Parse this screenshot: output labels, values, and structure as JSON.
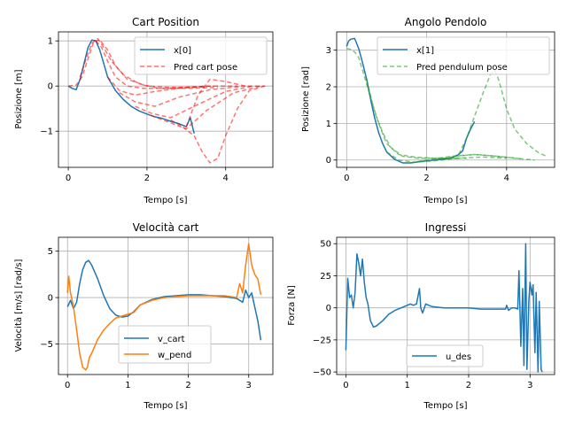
{
  "chart_data": [
    {
      "type": "line",
      "title": "Cart Position",
      "xlabel": "Tempo [s]",
      "ylabel": "Posizione [m]",
      "xlim": [
        -0.25,
        5.2
      ],
      "ylim": [
        -1.8,
        1.2
      ],
      "xticks": [
        0,
        2,
        4
      ],
      "yticks": [
        -1,
        0,
        1
      ],
      "grid": true,
      "legend_position": "top-right",
      "series": [
        {
          "name": "x[0]",
          "color": "#1f77b4",
          "style": "solid",
          "x": [
            0,
            0.1,
            0.2,
            0.3,
            0.4,
            0.5,
            0.6,
            0.7,
            0.8,
            0.9,
            1.0,
            1.2,
            1.4,
            1.6,
            1.8,
            2.0,
            2.2,
            2.4,
            2.6,
            2.8,
            3.0,
            3.1,
            3.2
          ],
          "y": [
            0.0,
            -0.05,
            -0.08,
            0.15,
            0.5,
            0.85,
            1.02,
            1.0,
            0.8,
            0.5,
            0.2,
            -0.1,
            -0.3,
            -0.45,
            -0.55,
            -0.62,
            -0.68,
            -0.72,
            -0.78,
            -0.83,
            -0.9,
            -0.7,
            -1.05
          ]
        },
        {
          "name": "Pred cart pose",
          "color": "#ff0000",
          "style": "dashed",
          "opacity": 0.55,
          "lines": [
            {
              "x": [
                0.0,
                0.2,
                0.35,
                0.5,
                0.65,
                0.8,
                1.0,
                1.2,
                1.5,
                2.0,
                2.6,
                3.5
              ],
              "y": [
                0.0,
                0.02,
                0.2,
                0.6,
                1.0,
                1.02,
                0.8,
                0.45,
                0.15,
                0.0,
                -0.03,
                -0.02
              ]
            },
            {
              "x": [
                0.3,
                0.45,
                0.6,
                0.75,
                0.9,
                1.1,
                1.4,
                1.8,
                2.3,
                3.0,
                3.8
              ],
              "y": [
                0.2,
                0.6,
                0.95,
                1.05,
                0.85,
                0.55,
                0.25,
                0.05,
                -0.05,
                -0.05,
                -0.03
              ]
            },
            {
              "x": [
                0.7,
                0.85,
                1.0,
                1.2,
                1.5,
                1.9,
                2.4,
                3.0,
                3.7
              ],
              "y": [
                1.0,
                0.85,
                0.55,
                0.2,
                0.0,
                -0.05,
                -0.05,
                -0.03,
                0.0
              ]
            },
            {
              "x": [
                1.0,
                1.3,
                1.7,
                2.2,
                2.8,
                3.5,
                4.3
              ],
              "y": [
                0.2,
                -0.1,
                -0.2,
                -0.12,
                -0.05,
                0.0,
                0.0
              ]
            },
            {
              "x": [
                1.3,
                1.7,
                2.2,
                2.8,
                3.6,
                4.5
              ],
              "y": [
                -0.15,
                -0.35,
                -0.45,
                -0.25,
                -0.08,
                0.0
              ]
            },
            {
              "x": [
                1.7,
                2.1,
                2.6,
                3.2,
                4.0,
                4.7
              ],
              "y": [
                -0.45,
                -0.6,
                -0.7,
                -0.45,
                -0.12,
                0.0
              ]
            },
            {
              "x": [
                2.1,
                2.5,
                3.0,
                3.5,
                4.2,
                4.9
              ],
              "y": [
                -0.65,
                -0.78,
                -0.95,
                -0.55,
                -0.15,
                0.0
              ]
            },
            {
              "x": [
                2.6,
                2.9,
                3.2,
                3.4,
                3.6,
                3.8,
                4.0,
                4.3,
                4.6,
                5.0
              ],
              "y": [
                -0.75,
                -0.9,
                -1.1,
                -1.45,
                -1.7,
                -1.6,
                -1.1,
                -0.5,
                -0.1,
                0.0
              ]
            },
            {
              "x": [
                3.0,
                3.3,
                3.6,
                4.0,
                4.5,
                5.0
              ],
              "y": [
                -0.9,
                -0.2,
                0.15,
                0.1,
                0.0,
                0.0
              ]
            }
          ]
        }
      ]
    },
    {
      "type": "line",
      "title": "Angolo Pendolo",
      "xlabel": "Tempo [s]",
      "ylabel": "Posizione [rad]",
      "xlim": [
        -0.25,
        5.2
      ],
      "ylim": [
        -0.2,
        3.5
      ],
      "xticks": [
        0,
        2,
        4
      ],
      "yticks": [
        0,
        1,
        2,
        3
      ],
      "grid": true,
      "legend_position": "top-right",
      "series": [
        {
          "name": "x[1]",
          "color": "#1f77b4",
          "style": "solid",
          "x": [
            0,
            0.05,
            0.1,
            0.2,
            0.3,
            0.4,
            0.5,
            0.6,
            0.7,
            0.8,
            0.9,
            1.0,
            1.2,
            1.4,
            1.6,
            1.8,
            2.0,
            2.2,
            2.4,
            2.6,
            2.8,
            2.9,
            3.0,
            3.1,
            3.2
          ],
          "y": [
            3.1,
            3.25,
            3.3,
            3.32,
            3.05,
            2.65,
            2.2,
            1.65,
            1.15,
            0.75,
            0.45,
            0.22,
            0.02,
            -0.08,
            -0.08,
            -0.05,
            -0.02,
            0.0,
            0.02,
            0.05,
            0.15,
            0.25,
            0.6,
            0.85,
            1.05
          ]
        },
        {
          "name": "Pred pendulum pose",
          "color": "#2ca02c",
          "style": "dashed",
          "opacity": 0.6,
          "lines": [
            {
              "x": [
                0.0,
                0.1,
                0.2,
                0.3,
                0.4,
                0.6,
                0.8,
                1.0,
                1.3,
                1.7,
                2.2,
                2.8
              ],
              "y": [
                3.05,
                3.02,
                2.95,
                2.8,
                2.45,
                1.7,
                1.0,
                0.45,
                0.15,
                0.08,
                0.05,
                0.05
              ]
            },
            {
              "x": [
                0.5,
                0.7,
                0.9,
                1.1,
                1.4,
                1.8,
                2.3,
                3.0
              ],
              "y": [
                2.2,
                1.3,
                0.75,
                0.35,
                0.1,
                0.05,
                0.05,
                0.05
              ]
            },
            {
              "x": [
                1.0,
                1.3,
                1.7,
                2.2,
                2.8,
                3.4,
                4.0
              ],
              "y": [
                0.22,
                0.0,
                -0.06,
                -0.02,
                0.05,
                0.08,
                0.05
              ]
            },
            {
              "x": [
                1.6,
                2.0,
                2.6,
                3.2,
                3.8,
                4.4
              ],
              "y": [
                -0.08,
                0.0,
                0.1,
                0.15,
                0.1,
                0.03
              ]
            },
            {
              "x": [
                2.2,
                2.7,
                3.2,
                3.6,
                4.2,
                4.7
              ],
              "y": [
                0.0,
                0.1,
                0.15,
                0.12,
                0.05,
                0.0
              ]
            },
            {
              "x": [
                2.8,
                3.0,
                3.2,
                3.4,
                3.6,
                3.7,
                3.8,
                4.0,
                4.2,
                4.5,
                4.8,
                5.0
              ],
              "y": [
                0.15,
                0.6,
                1.2,
                1.8,
                2.35,
                2.45,
                2.2,
                1.4,
                0.85,
                0.45,
                0.2,
                0.1
              ]
            }
          ]
        }
      ]
    },
    {
      "type": "line",
      "title": "Velocità cart",
      "xlabel": "Tempo [s]",
      "ylabel": "Velocità [m/s] [rad/s]",
      "xlim": [
        -0.15,
        3.4
      ],
      "ylim": [
        -8.3,
        6.5
      ],
      "xticks": [
        0,
        1,
        2,
        3
      ],
      "yticks": [
        -5,
        0,
        5
      ],
      "grid": true,
      "legend_position": "lower-center",
      "series": [
        {
          "name": "v_cart",
          "color": "#1f77b4",
          "style": "solid",
          "x": [
            0,
            0.05,
            0.1,
            0.15,
            0.2,
            0.25,
            0.3,
            0.35,
            0.4,
            0.5,
            0.6,
            0.7,
            0.8,
            0.9,
            1.0,
            1.1,
            1.2,
            1.4,
            1.6,
            1.8,
            2.0,
            2.2,
            2.4,
            2.6,
            2.8,
            2.9,
            2.95,
            3.0,
            3.05,
            3.1,
            3.15,
            3.2
          ],
          "y": [
            -1.0,
            -0.3,
            -1.2,
            -0.5,
            1.5,
            3.0,
            3.8,
            4.0,
            3.5,
            2.0,
            0.2,
            -1.2,
            -1.9,
            -2.1,
            -2.0,
            -1.5,
            -0.8,
            -0.2,
            0.1,
            0.2,
            0.3,
            0.3,
            0.2,
            0.1,
            -0.1,
            -0.5,
            0.8,
            0.0,
            0.5,
            -1.0,
            -2.5,
            -4.6
          ]
        },
        {
          "name": "w_pend",
          "color": "#ff7f0e",
          "style": "solid",
          "x": [
            0,
            0.02,
            0.05,
            0.1,
            0.15,
            0.2,
            0.25,
            0.3,
            0.33,
            0.36,
            0.4,
            0.5,
            0.6,
            0.7,
            0.8,
            0.9,
            1.0,
            1.1,
            1.2,
            1.4,
            1.6,
            1.8,
            2.0,
            2.2,
            2.4,
            2.6,
            2.7,
            2.8,
            2.85,
            2.9,
            2.95,
            3.0,
            3.05,
            3.1,
            3.15,
            3.2
          ],
          "y": [
            0.5,
            2.3,
            0.5,
            -1.0,
            -3.5,
            -6.0,
            -7.5,
            -7.8,
            -7.5,
            -6.5,
            -6.0,
            -4.5,
            -3.5,
            -2.8,
            -2.2,
            -2.0,
            -1.8,
            -1.6,
            -0.8,
            -0.3,
            0.0,
            0.1,
            0.2,
            0.2,
            0.2,
            0.2,
            0.1,
            0.0,
            1.5,
            0.5,
            3.5,
            5.8,
            3.5,
            2.5,
            2.0,
            0.3
          ]
        }
      ]
    },
    {
      "type": "line",
      "title": "Ingressi",
      "xlabel": "Tempo [s]",
      "ylabel": "Forza [N]",
      "xlim": [
        -0.15,
        3.4
      ],
      "ylim": [
        -52,
        55
      ],
      "xticks": [
        0,
        1,
        2,
        3
      ],
      "yticks": [
        -50,
        -25,
        0,
        25,
        50
      ],
      "grid": true,
      "legend_position": "lower-center",
      "series": [
        {
          "name": "u_des",
          "color": "#1f77b4",
          "style": "solid",
          "x": [
            0,
            0.03,
            0.06,
            0.09,
            0.12,
            0.15,
            0.18,
            0.21,
            0.24,
            0.27,
            0.3,
            0.33,
            0.36,
            0.4,
            0.45,
            0.5,
            0.6,
            0.7,
            0.8,
            0.9,
            1.0,
            1.05,
            1.1,
            1.15,
            1.2,
            1.22,
            1.25,
            1.3,
            1.4,
            1.6,
            1.8,
            2.0,
            2.2,
            2.4,
            2.6,
            2.62,
            2.65,
            2.7,
            2.75,
            2.8,
            2.82,
            2.85,
            2.88,
            2.9,
            2.93,
            2.95,
            2.98,
            3.0,
            3.03,
            3.05,
            3.08,
            3.1,
            3.13,
            3.15,
            3.18,
            3.2
          ],
          "y": [
            -33,
            23,
            8,
            10,
            0,
            12,
            42,
            35,
            25,
            38,
            20,
            8,
            3,
            -10,
            -15,
            -14,
            -10,
            -5,
            -2,
            0,
            2,
            3,
            2,
            3,
            15,
            0,
            -4,
            3,
            1,
            0,
            0,
            0,
            -1,
            -1,
            -1,
            2,
            -2,
            0,
            0,
            -1,
            29,
            -30,
            15,
            -45,
            50,
            -48,
            5,
            20,
            10,
            18,
            -35,
            12,
            -50,
            5,
            -48,
            -50
          ]
        }
      ]
    }
  ]
}
